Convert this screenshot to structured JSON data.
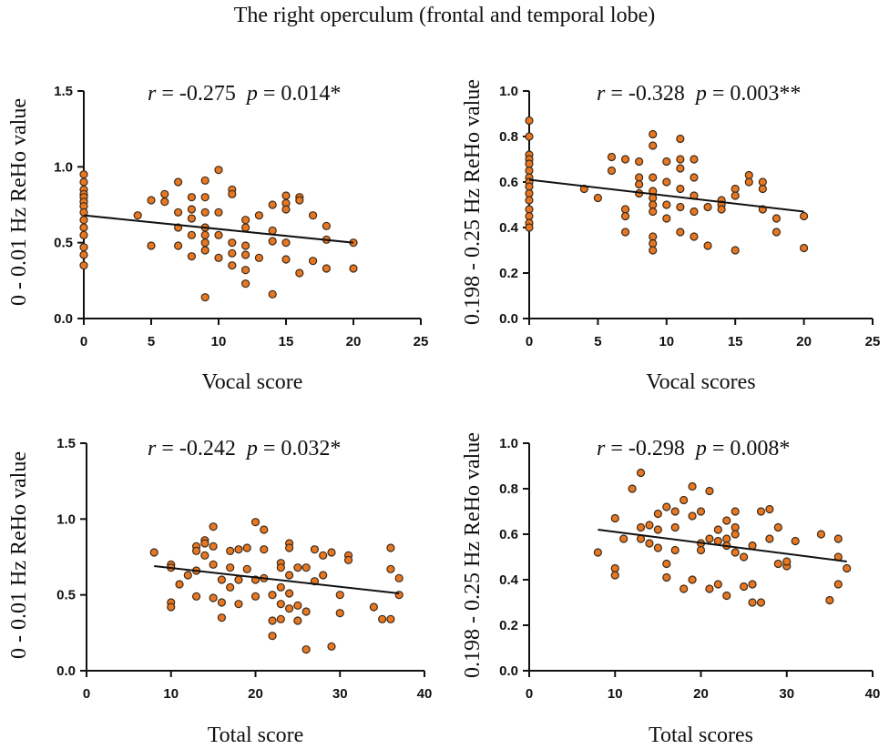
{
  "figure_title": "The right operculum (frontal and temporal lobe)",
  "colors": {
    "point_fill": "#E87722",
    "point_stroke": "#3a2a1a",
    "axis": "#111111",
    "fit_line": "#111111"
  },
  "chart_data": [
    {
      "type": "scatter",
      "panel": "top-left",
      "r_label": "r",
      "r_text": " = -0.275  ",
      "p_label": "p",
      "p_text": " = 0.014*",
      "xlabel": "Vocal score",
      "ylabel": "0 - 0.01 Hz ReHo value",
      "xlim": [
        0,
        25
      ],
      "ylim": [
        0,
        1.5
      ],
      "xticks": [
        "0",
        "5",
        "10",
        "15",
        "20",
        "25"
      ],
      "yticks": [
        "0.0",
        "0.5",
        "1.0",
        "1.5"
      ],
      "fit_line": [
        [
          0,
          0.68
        ],
        [
          20,
          0.5
        ]
      ],
      "x": [
        0,
        0,
        0,
        0,
        0,
        0,
        0,
        0,
        0,
        0,
        0,
        0,
        0,
        0,
        4,
        5,
        5,
        6,
        6,
        7,
        7,
        7,
        7,
        8,
        8,
        8,
        8,
        8,
        9,
        9,
        9,
        9,
        9,
        9,
        9,
        9,
        10,
        10,
        10,
        10,
        11,
        11,
        11,
        11,
        11,
        12,
        12,
        12,
        12,
        12,
        12,
        13,
        13,
        14,
        14,
        14,
        14,
        15,
        15,
        15,
        15,
        15,
        16,
        16,
        16,
        17,
        17,
        18,
        18,
        18,
        20,
        20
      ],
      "y": [
        0.95,
        0.9,
        0.85,
        0.82,
        0.8,
        0.77,
        0.74,
        0.7,
        0.65,
        0.6,
        0.55,
        0.47,
        0.42,
        0.35,
        0.68,
        0.78,
        0.48,
        0.82,
        0.77,
        0.9,
        0.7,
        0.6,
        0.48,
        0.8,
        0.72,
        0.66,
        0.55,
        0.41,
        0.91,
        0.8,
        0.7,
        0.6,
        0.55,
        0.5,
        0.45,
        0.14,
        0.98,
        0.7,
        0.55,
        0.4,
        0.85,
        0.82,
        0.5,
        0.43,
        0.35,
        0.65,
        0.6,
        0.48,
        0.42,
        0.32,
        0.23,
        0.68,
        0.4,
        0.75,
        0.58,
        0.51,
        0.16,
        0.81,
        0.76,
        0.72,
        0.5,
        0.39,
        0.8,
        0.78,
        0.3,
        0.68,
        0.38,
        0.61,
        0.52,
        0.33,
        0.5,
        0.33
      ]
    },
    {
      "type": "scatter",
      "panel": "top-right",
      "r_label": "r",
      "r_text": " = -0.328  ",
      "p_label": "p",
      "p_text": " = 0.003**",
      "xlabel": "Vocal scores",
      "ylabel": "0.198 - 0.25 Hz ReHo value",
      "xlim": [
        0,
        25
      ],
      "ylim": [
        0,
        1.0
      ],
      "xticks": [
        "0",
        "5",
        "10",
        "15",
        "20",
        "25"
      ],
      "yticks": [
        "0.0",
        "0.2",
        "0.4",
        "0.6",
        "0.8",
        "1.0"
      ],
      "fit_line": [
        [
          0,
          0.61
        ],
        [
          20,
          0.47
        ]
      ],
      "x": [
        0,
        0,
        0,
        0,
        0,
        0,
        0,
        0,
        0,
        0,
        0,
        0,
        0,
        0,
        0,
        4,
        5,
        6,
        6,
        7,
        7,
        7,
        7,
        8,
        8,
        8,
        8,
        9,
        9,
        9,
        9,
        9,
        9,
        9,
        9,
        9,
        9,
        10,
        10,
        10,
        10,
        11,
        11,
        11,
        11,
        11,
        11,
        12,
        12,
        12,
        12,
        12,
        13,
        13,
        14,
        14,
        14,
        15,
        15,
        15,
        16,
        16,
        17,
        17,
        17,
        18,
        18,
        20,
        20
      ],
      "y": [
        0.87,
        0.8,
        0.72,
        0.7,
        0.68,
        0.65,
        0.62,
        0.6,
        0.58,
        0.55,
        0.52,
        0.48,
        0.45,
        0.42,
        0.4,
        0.57,
        0.53,
        0.71,
        0.65,
        0.7,
        0.48,
        0.45,
        0.38,
        0.69,
        0.62,
        0.59,
        0.55,
        0.81,
        0.76,
        0.62,
        0.56,
        0.53,
        0.5,
        0.47,
        0.36,
        0.33,
        0.3,
        0.69,
        0.6,
        0.5,
        0.44,
        0.79,
        0.7,
        0.66,
        0.57,
        0.49,
        0.38,
        0.7,
        0.62,
        0.54,
        0.47,
        0.36,
        0.49,
        0.32,
        0.52,
        0.5,
        0.48,
        0.57,
        0.54,
        0.3,
        0.63,
        0.6,
        0.6,
        0.57,
        0.48,
        0.44,
        0.38,
        0.45,
        0.31
      ]
    },
    {
      "type": "scatter",
      "panel": "bottom-left",
      "r_label": "r",
      "r_text": " = -0.242  ",
      "p_label": "p",
      "p_text": " = 0.032*",
      "xlabel": "Total score",
      "ylabel": "0 - 0.01 Hz ReHo value",
      "xlim": [
        0,
        40
      ],
      "ylim": [
        0,
        1.5
      ],
      "xticks": [
        "0",
        "10",
        "20",
        "30",
        "40"
      ],
      "yticks": [
        "0.0",
        "0.5",
        "1.0",
        "1.5"
      ],
      "fit_line": [
        [
          8,
          0.69
        ],
        [
          37,
          0.51
        ]
      ],
      "x": [
        8,
        10,
        10,
        10,
        10,
        11,
        12,
        13,
        13,
        13,
        13,
        14,
        14,
        14,
        15,
        15,
        15,
        15,
        16,
        16,
        16,
        17,
        17,
        17,
        18,
        18,
        18,
        19,
        19,
        20,
        20,
        20,
        21,
        21,
        21,
        22,
        22,
        22,
        23,
        23,
        23,
        23,
        23,
        24,
        24,
        24,
        24,
        24,
        25,
        25,
        25,
        26,
        26,
        26,
        27,
        27,
        28,
        28,
        29,
        29,
        30,
        30,
        31,
        31,
        34,
        35,
        36,
        36,
        36,
        37,
        37
      ],
      "y": [
        0.78,
        0.7,
        0.68,
        0.45,
        0.42,
        0.57,
        0.63,
        0.82,
        0.79,
        0.66,
        0.49,
        0.86,
        0.84,
        0.76,
        0.95,
        0.82,
        0.7,
        0.48,
        0.6,
        0.45,
        0.35,
        0.79,
        0.68,
        0.55,
        0.8,
        0.6,
        0.44,
        0.81,
        0.67,
        0.98,
        0.6,
        0.49,
        0.93,
        0.8,
        0.61,
        0.5,
        0.33,
        0.23,
        0.71,
        0.68,
        0.55,
        0.44,
        0.34,
        0.84,
        0.81,
        0.63,
        0.51,
        0.41,
        0.68,
        0.43,
        0.33,
        0.68,
        0.39,
        0.14,
        0.8,
        0.59,
        0.76,
        0.63,
        0.78,
        0.16,
        0.5,
        0.38,
        0.76,
        0.73,
        0.42,
        0.34,
        0.81,
        0.67,
        0.34,
        0.61,
        0.5
      ]
    },
    {
      "type": "scatter",
      "panel": "bottom-right",
      "r_label": "r",
      "r_text": " = -0.298  ",
      "p_label": "p",
      "p_text": " = 0.008*",
      "xlabel": "Total scores",
      "ylabel": "0.198 - 0.25 Hz ReHo value",
      "xlim": [
        0,
        40
      ],
      "ylim": [
        0,
        1.0
      ],
      "xticks": [
        "0",
        "10",
        "20",
        "30",
        "40"
      ],
      "yticks": [
        "0.0",
        "0.2",
        "0.4",
        "0.6",
        "0.8",
        "1.0"
      ],
      "fit_line": [
        [
          8,
          0.62
        ],
        [
          37,
          0.48
        ]
      ],
      "x": [
        8,
        10,
        10,
        10,
        11,
        12,
        13,
        13,
        13,
        14,
        14,
        15,
        15,
        15,
        16,
        16,
        16,
        17,
        17,
        17,
        18,
        18,
        19,
        19,
        19,
        20,
        20,
        20,
        21,
        21,
        21,
        22,
        22,
        22,
        23,
        23,
        23,
        23,
        24,
        24,
        24,
        24,
        25,
        25,
        26,
        26,
        26,
        27,
        27,
        28,
        28,
        29,
        29,
        30,
        30,
        31,
        34,
        35,
        36,
        36,
        36,
        37
      ],
      "y": [
        0.52,
        0.67,
        0.45,
        0.42,
        0.58,
        0.8,
        0.87,
        0.63,
        0.58,
        0.64,
        0.56,
        0.69,
        0.62,
        0.54,
        0.72,
        0.47,
        0.41,
        0.7,
        0.63,
        0.53,
        0.75,
        0.36,
        0.81,
        0.68,
        0.4,
        0.7,
        0.56,
        0.53,
        0.79,
        0.58,
        0.36,
        0.62,
        0.57,
        0.38,
        0.66,
        0.58,
        0.55,
        0.33,
        0.7,
        0.63,
        0.6,
        0.52,
        0.5,
        0.37,
        0.55,
        0.38,
        0.3,
        0.7,
        0.3,
        0.71,
        0.58,
        0.63,
        0.47,
        0.46,
        0.48,
        0.57,
        0.6,
        0.31,
        0.58,
        0.5,
        0.38,
        0.45
      ]
    }
  ]
}
